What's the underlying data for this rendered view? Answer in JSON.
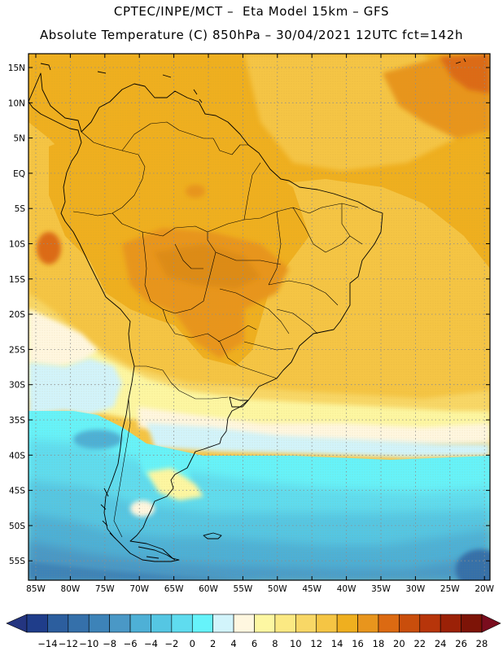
{
  "header": {
    "line1": "CPTEC/INPE/MCT –  Eta Model 15km – GFS",
    "line2": "Absolute Temperature (C) 850hPa – 30/04/2021 12UTC fct=142h"
  },
  "map": {
    "region": "South America",
    "variable": "Absolute Temperature",
    "units": "C",
    "level": "850hPa",
    "latitude_labels": [
      "15N",
      "10N",
      "5N",
      "EQ",
      "5S",
      "10S",
      "15S",
      "20S",
      "25S",
      "30S",
      "35S",
      "40S",
      "45S",
      "50S",
      "55S"
    ],
    "longitude_labels": [
      "85W",
      "80W",
      "75W",
      "70W",
      "65W",
      "60W",
      "55W",
      "50W",
      "45W",
      "40W",
      "35W",
      "30W",
      "25W",
      "20W"
    ]
  },
  "colorbar": {
    "tick_labels": [
      "-14",
      "-12",
      "-10",
      "-8",
      "-6",
      "-4",
      "-2",
      "0",
      "2",
      "4",
      "6",
      "8",
      "10",
      "12",
      "14",
      "16",
      "18",
      "20",
      "22",
      "24",
      "26",
      "28"
    ],
    "colors": [
      "#1f3d8a",
      "#2c5e9e",
      "#3570aa",
      "#3d83b8",
      "#4a98c6",
      "#4eb0d6",
      "#55c6e3",
      "#5fdcef",
      "#66f3fa",
      "#d2f4fb",
      "#fff7e0",
      "#fdf7a2",
      "#fbe983",
      "#f8d766",
      "#f5c544",
      "#efaf1f",
      "#e8951d",
      "#dc6a12",
      "#c94e0c",
      "#b7350a",
      "#9b2107",
      "#7d1407"
    ],
    "under_color": "#243580",
    "over_color": "#7a0d1e"
  }
}
